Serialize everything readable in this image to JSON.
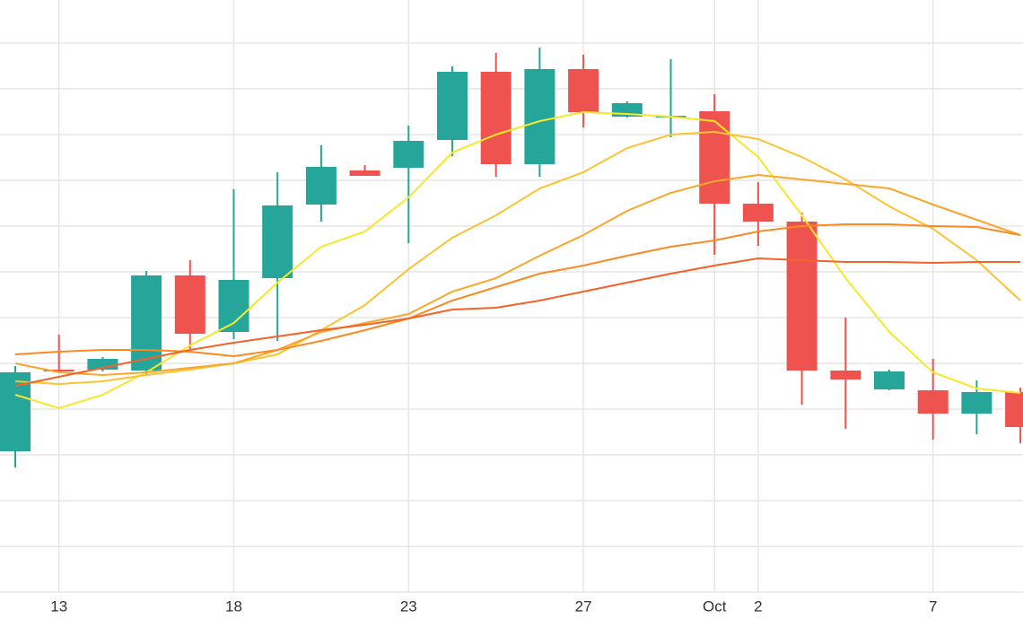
{
  "chart_data": {
    "type": "candlestick",
    "categories": [
      null,
      "13",
      null,
      null,
      null,
      "18",
      null,
      null,
      null,
      "23",
      null,
      null,
      null,
      "27",
      null,
      null,
      "Oct",
      "2",
      null,
      null,
      null,
      "7",
      null,
      null
    ],
    "open": [
      15.7,
      24.8,
      24.8,
      24.7,
      35.3,
      29.0,
      35.0,
      43.2,
      47.0,
      47.3,
      50.4,
      58.0,
      47.7,
      58.3,
      53.0,
      52.9,
      53.6,
      43.3,
      41.3,
      24.7,
      22.6,
      22.5,
      19.9,
      22.3
    ],
    "high": [
      25.2,
      28.7,
      26.2,
      35.8,
      37.0,
      44.9,
      46.8,
      49.8,
      47.6,
      52.0,
      58.6,
      60.1,
      60.7,
      59.9,
      54.7,
      59.4,
      55.5,
      45.7,
      42.3,
      30.6,
      24.8,
      26.0,
      23.6,
      22.8
    ],
    "low": [
      13.9,
      24.5,
      24.6,
      24.2,
      27.1,
      28.2,
      28.0,
      41.3,
      46.4,
      38.9,
      48.6,
      46.3,
      46.3,
      51.8,
      52.9,
      50.7,
      37.6,
      38.6,
      20.9,
      18.2,
      22.5,
      17.0,
      17.6,
      16.6
    ],
    "close": [
      24.5,
      24.6,
      26.0,
      35.3,
      28.8,
      34.8,
      43.1,
      47.4,
      46.4,
      50.3,
      58.0,
      47.7,
      58.3,
      53.5,
      54.5,
      53.1,
      43.3,
      41.3,
      24.7,
      23.7,
      24.6,
      19.9,
      22.3,
      18.4
    ],
    "up_color": "#26a69a",
    "down_color": "#ef5350",
    "overlays": [
      {
        "color": "#f7e82a",
        "values": [
          22.0,
          20.5,
          22.0,
          24.5,
          27.5,
          30.0,
          34.5,
          38.5,
          40.2,
          44.0,
          49.0,
          51.0,
          52.5,
          53.5,
          53.3,
          53.0,
          52.5,
          48.5,
          42.0,
          35.0,
          29.0,
          24.5,
          22.7,
          22.2
        ]
      },
      {
        "color": "#fbc330",
        "values": [
          23.5,
          23.2,
          23.5,
          24.2,
          24.8,
          25.5,
          26.5,
          29.2,
          32.0,
          36.0,
          39.5,
          42.0,
          45.0,
          46.8,
          49.5,
          51.0,
          51.3,
          50.5,
          48.5,
          46.0,
          43.0,
          40.5,
          37.0,
          32.5
        ]
      },
      {
        "color": "#fba52a",
        "values": [
          25.5,
          24.5,
          24.2,
          24.5,
          25.0,
          25.5,
          27.0,
          29.0,
          30.0,
          31.0,
          33.5,
          35.0,
          37.5,
          39.8,
          42.5,
          44.5,
          45.8,
          46.5,
          46.0,
          45.5,
          45.0,
          43.2,
          41.5,
          39.8
        ]
      },
      {
        "color": "#f98a24",
        "values": [
          26.5,
          26.8,
          27.0,
          27.0,
          26.8,
          26.3,
          27.0,
          28.0,
          29.2,
          30.5,
          32.5,
          34.0,
          35.5,
          36.4,
          37.5,
          38.5,
          39.2,
          40.2,
          40.8,
          41.0,
          41.0,
          40.8,
          40.7,
          39.8
        ]
      },
      {
        "color": "#f4622a",
        "values": [
          23.0,
          24.0,
          25.0,
          26.0,
          27.0,
          27.8,
          28.5,
          29.2,
          29.8,
          30.5,
          31.5,
          31.7,
          32.5,
          33.5,
          34.5,
          35.5,
          36.4,
          37.2,
          37.0,
          36.8,
          36.8,
          36.7,
          36.8,
          36.8
        ]
      }
    ],
    "ylim": [
      0,
      66
    ],
    "yticks": [
      0,
      5.1,
      10.2,
      15.3,
      20.4,
      25.5,
      30.6,
      35.7,
      40.8,
      45.9,
      51,
      56.1,
      61.2
    ],
    "grid": true
  }
}
